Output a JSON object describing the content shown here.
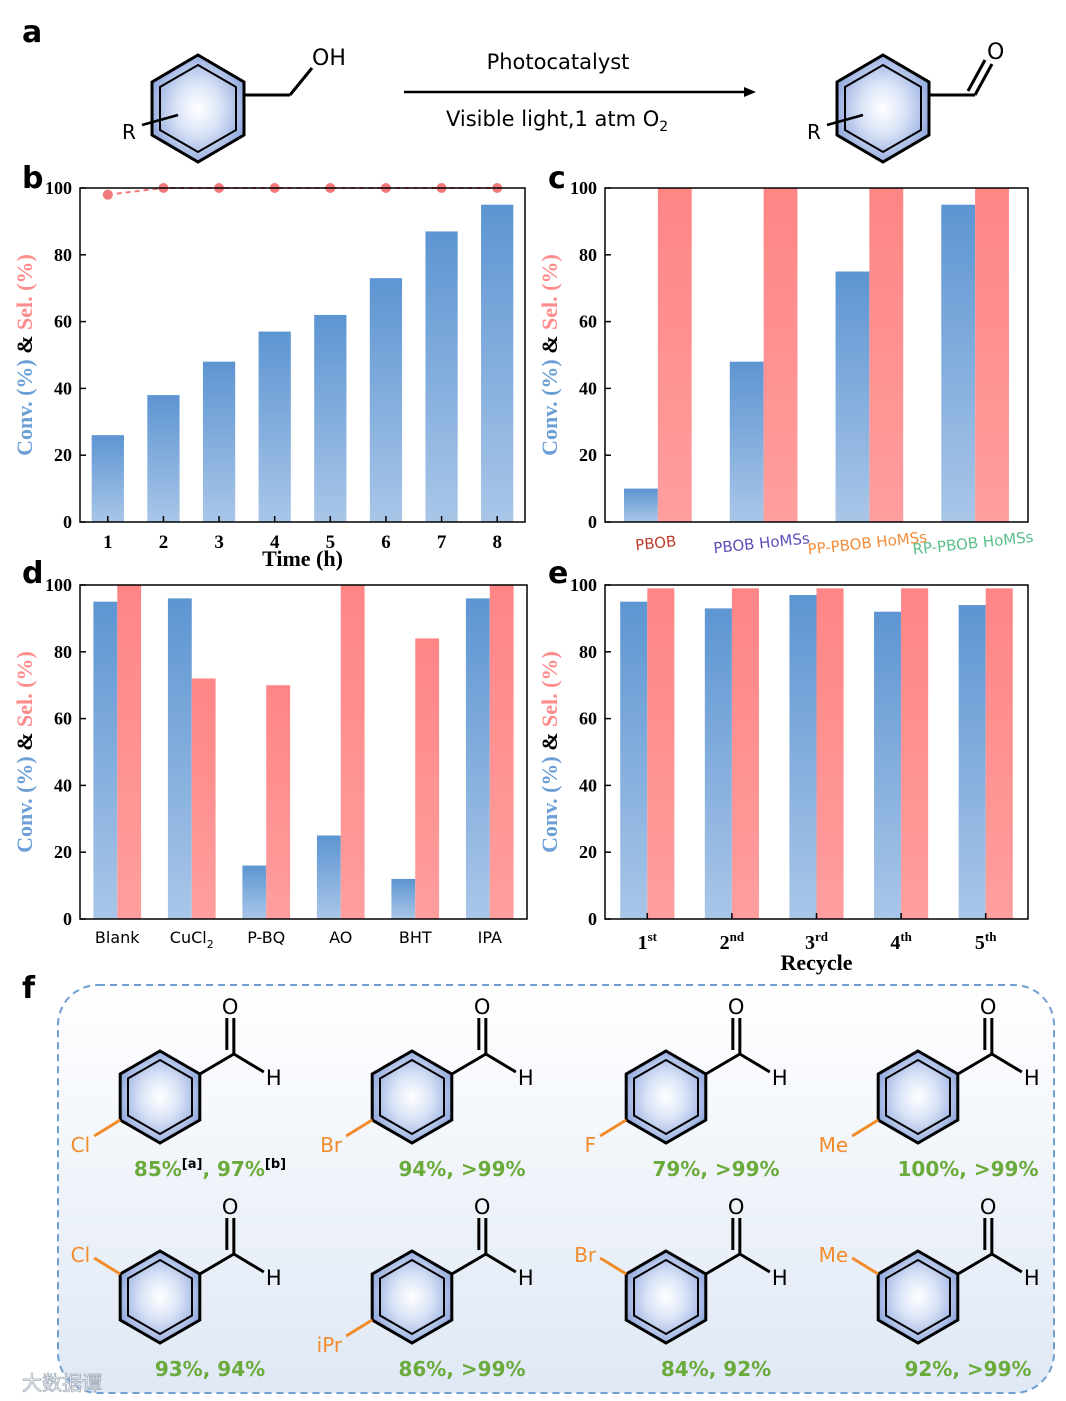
{
  "panel_letters": {
    "a": "a",
    "b": "b",
    "c": "c",
    "d": "d",
    "e": "e",
    "f": "f"
  },
  "reaction": {
    "reactant_group": "OH",
    "substituent": "R",
    "product_carbonyl": "O",
    "condition_top": "Photocatalyst",
    "condition_bottom": "Visible light,1 atm O",
    "o2_subscript": "2"
  },
  "axis_text": {
    "ylabel_conv": "Conv. (%)",
    "ylabel_amp": " & ",
    "ylabel_sel": "Sel. (%)"
  },
  "colors": {
    "conv": "#6b9fd6",
    "sel": "#ff8b8b",
    "sel_line": "#f27a7a",
    "label_red": "#c0392b",
    "label_blue": "#5a4fb8",
    "label_orange": "#f28c3a",
    "label_green": "#5bbf8a",
    "substituent": "#f28c2a",
    "yield": "#6aab3c",
    "frame": "#6f9fd3"
  },
  "chart_data": [
    {
      "id": "b",
      "type": "bar+line",
      "xlabel": "Time (h)",
      "ylim": [
        0,
        100
      ],
      "yticks": [
        "0",
        "20",
        "40",
        "60",
        "80",
        "100"
      ],
      "categories": [
        "1",
        "2",
        "3",
        "4",
        "5",
        "6",
        "7",
        "8"
      ],
      "series": [
        {
          "name": "Conv.",
          "type": "bar",
          "values": [
            26,
            38,
            48,
            57,
            62,
            73,
            87,
            95
          ]
        },
        {
          "name": "Sel.",
          "type": "line",
          "values": [
            98,
            100,
            100,
            100,
            100,
            100,
            100,
            100
          ]
        }
      ]
    },
    {
      "id": "c",
      "type": "bar",
      "xlabel": "",
      "ylim": [
        0,
        100
      ],
      "yticks": [
        "0",
        "20",
        "40",
        "60",
        "80",
        "100"
      ],
      "categories": [
        "PBOB",
        "PBOB HoMSs",
        "PP-PBOB HoMSs",
        "RP-PBOB HoMSs"
      ],
      "series": [
        {
          "name": "Conv.",
          "values": [
            10,
            48,
            75,
            95
          ]
        },
        {
          "name": "Sel.",
          "values": [
            100,
            100,
            100,
            100
          ]
        }
      ]
    },
    {
      "id": "d",
      "type": "bar",
      "xlabel": "",
      "ylim": [
        0,
        100
      ],
      "yticks": [
        "0",
        "20",
        "40",
        "60",
        "80",
        "100"
      ],
      "categories": [
        "Blank",
        "CuCl",
        "P-BQ",
        "AO",
        "BHT",
        "IPA"
      ],
      "category_subscripts": [
        "",
        "2",
        "",
        "",
        "",
        ""
      ],
      "series": [
        {
          "name": "Conv.",
          "values": [
            95,
            96,
            16,
            25,
            12,
            96
          ]
        },
        {
          "name": "Sel.",
          "values": [
            100,
            72,
            70,
            100,
            84,
            100
          ]
        }
      ]
    },
    {
      "id": "e",
      "type": "bar",
      "xlabel": "Recycle",
      "ylim": [
        0,
        100
      ],
      "yticks": [
        "0",
        "20",
        "40",
        "60",
        "80",
        "100"
      ],
      "categories": [
        "1",
        "2",
        "3",
        "4",
        "5"
      ],
      "category_superscripts": [
        "st",
        "nd",
        "rd",
        "th",
        "th"
      ],
      "series": [
        {
          "name": "Conv.",
          "values": [
            95,
            93,
            97,
            92,
            94
          ]
        },
        {
          "name": "Sel.",
          "values": [
            99,
            99,
            99,
            99,
            99
          ]
        }
      ]
    }
  ],
  "substrates": {
    "aldehyde_o": "O",
    "aldehyde_h": "H",
    "items": [
      {
        "group": "Cl",
        "position": "para",
        "yield_text": "85%",
        "note1": "[a]",
        "sep": ", ",
        "yield2": "97%",
        "note2": "[b]"
      },
      {
        "group": "Br",
        "position": "para",
        "yield_text": "94%, >99%"
      },
      {
        "group": "F",
        "position": "para",
        "yield_text": "79%, >99%"
      },
      {
        "group": "Me",
        "position": "para",
        "yield_text": "100%, >99%"
      },
      {
        "group": "Cl",
        "position": "meta",
        "yield_text": "93%, 94%"
      },
      {
        "group": "iPr",
        "position": "para",
        "yield_text": "86%, >99%"
      },
      {
        "group": "Br",
        "position": "meta",
        "yield_text": "84%, 92%"
      },
      {
        "group": "Me",
        "position": "meta",
        "yield_text": "92%, >99%"
      }
    ]
  },
  "watermark": "大数据谭"
}
